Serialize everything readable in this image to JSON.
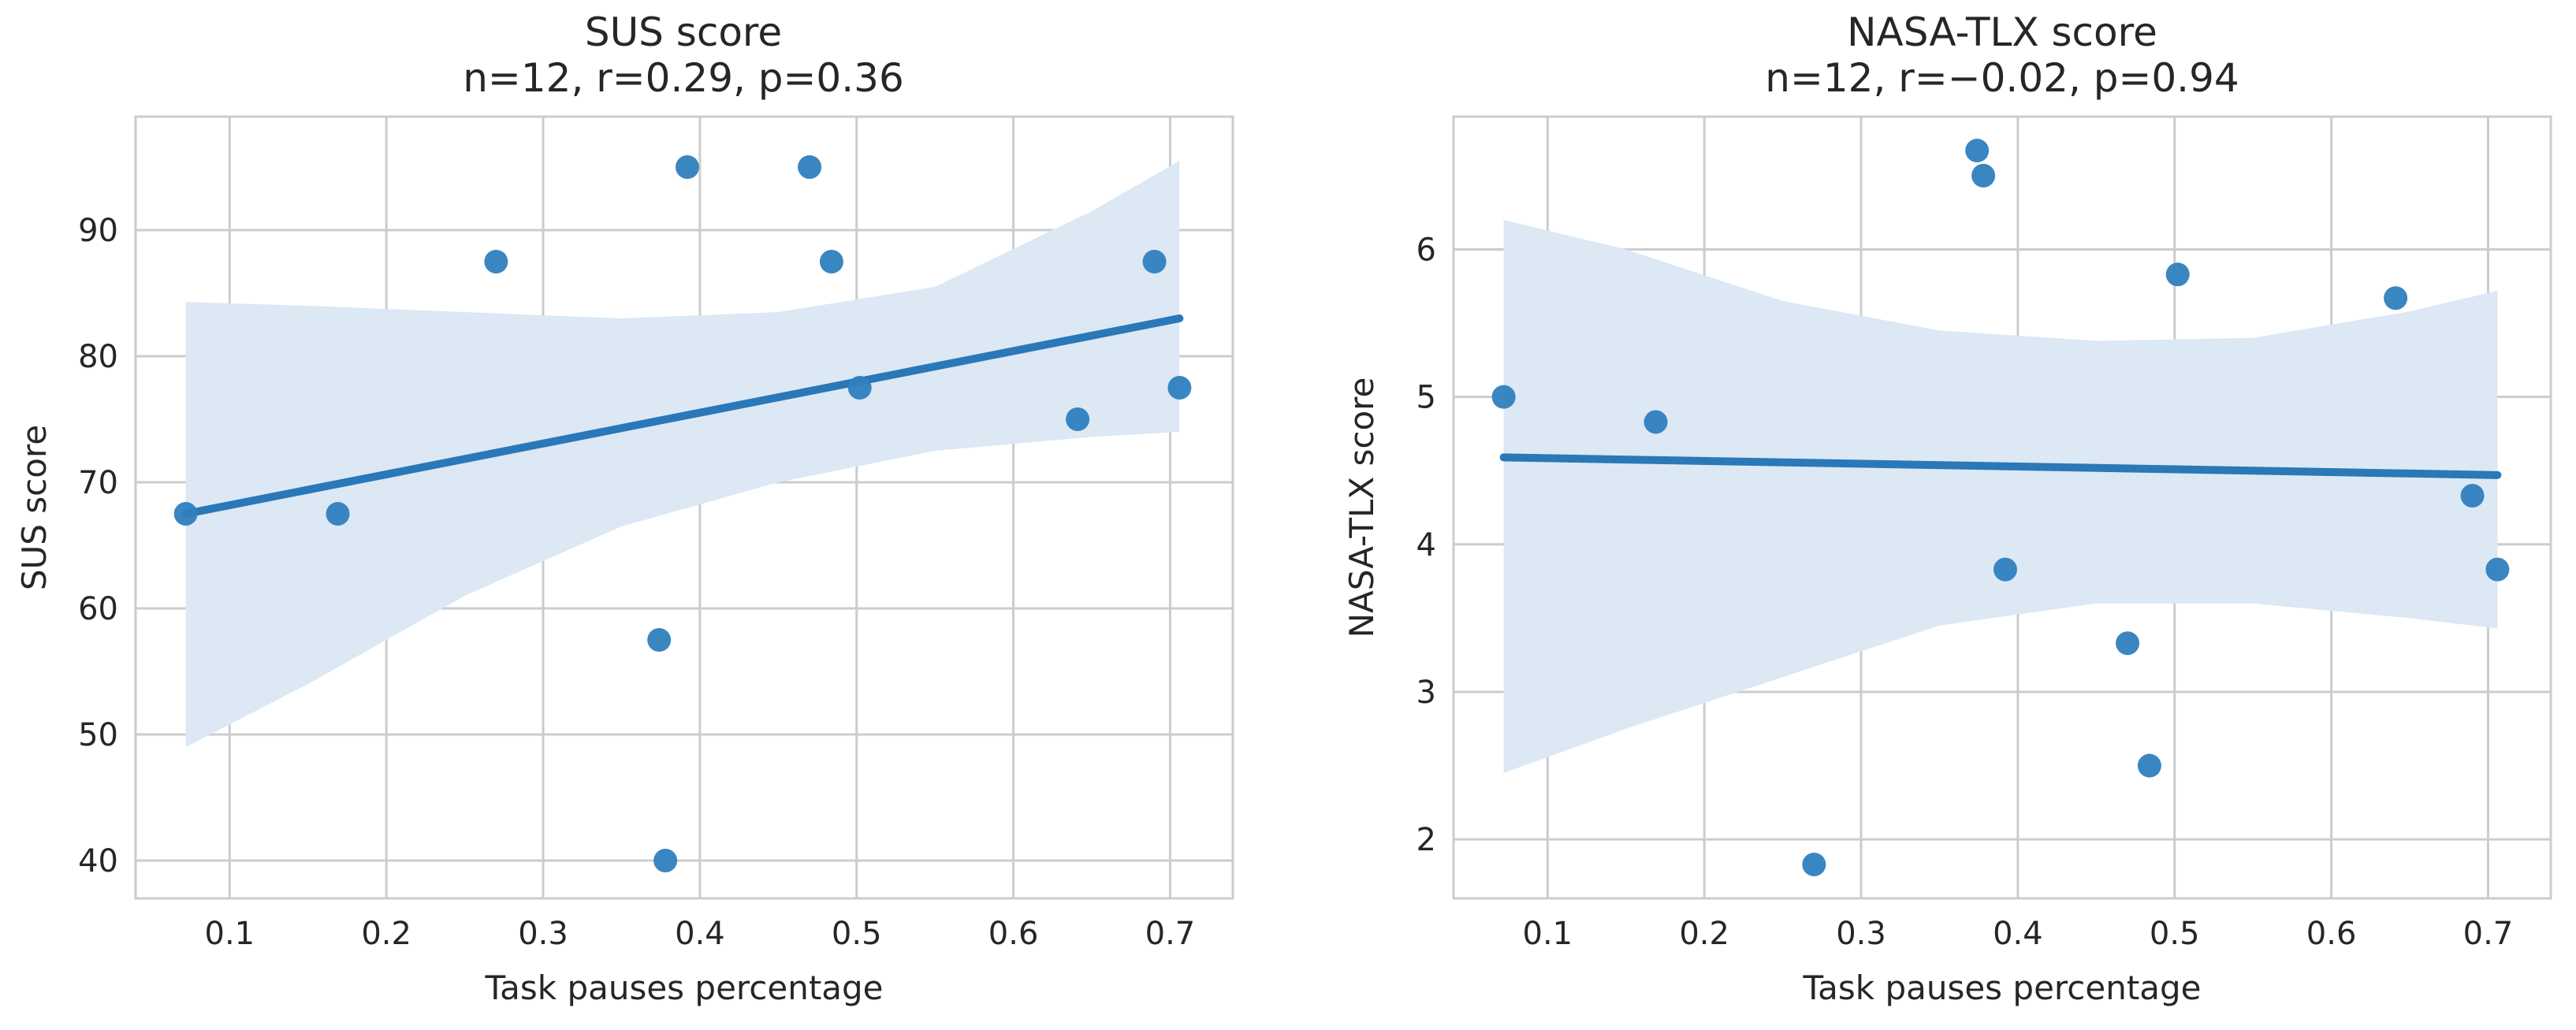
{
  "chart_data": [
    {
      "type": "scatter",
      "title": "SUS score",
      "subtitle": "n=12, r=0.29, p=0.36",
      "xlabel": "Task pauses percentage",
      "ylabel": "SUS score",
      "xlim": [
        0.04,
        0.74
      ],
      "ylim": [
        37,
        99
      ],
      "xticks": [
        0.1,
        0.2,
        0.3,
        0.4,
        0.5,
        0.6,
        0.7
      ],
      "xtick_labels": [
        "0.1",
        "0.2",
        "0.3",
        "0.4",
        "0.5",
        "0.6",
        "0.7"
      ],
      "yticks": [
        40,
        50,
        60,
        70,
        80,
        90
      ],
      "ytick_labels": [
        "40",
        "50",
        "60",
        "70",
        "80",
        "90"
      ],
      "grid": true,
      "points": [
        {
          "x": 0.072,
          "y": 67.5
        },
        {
          "x": 0.169,
          "y": 67.5
        },
        {
          "x": 0.27,
          "y": 87.5
        },
        {
          "x": 0.374,
          "y": 57.5
        },
        {
          "x": 0.378,
          "y": 40.0
        },
        {
          "x": 0.392,
          "y": 95.0
        },
        {
          "x": 0.47,
          "y": 95.0
        },
        {
          "x": 0.484,
          "y": 87.5
        },
        {
          "x": 0.502,
          "y": 77.5
        },
        {
          "x": 0.641,
          "y": 75.0
        },
        {
          "x": 0.69,
          "y": 87.5
        },
        {
          "x": 0.706,
          "y": 77.5
        }
      ],
      "regression_line": {
        "x": [
          0.072,
          0.706
        ],
        "y": [
          67.5,
          83.0
        ]
      },
      "confidence_band": {
        "x": [
          0.072,
          0.15,
          0.25,
          0.35,
          0.45,
          0.55,
          0.65,
          0.706
        ],
        "lower": [
          49.0,
          54.0,
          61.0,
          66.5,
          70.0,
          72.5,
          73.6,
          74.0
        ],
        "upper": [
          84.3,
          84.0,
          83.5,
          83.0,
          83.5,
          85.5,
          91.5,
          95.5
        ]
      },
      "colors": {
        "point": "#2f7fbe",
        "line": "#2a78b8",
        "band": "#dce8f4"
      }
    },
    {
      "type": "scatter",
      "title": "NASA-TLX score",
      "subtitle": "n=12, r=−0.02, p=0.94",
      "xlabel": "Task pauses percentage",
      "ylabel": "NASA-TLX score",
      "xlim": [
        0.04,
        0.74
      ],
      "ylim": [
        1.6,
        6.9
      ],
      "xticks": [
        0.1,
        0.2,
        0.3,
        0.4,
        0.5,
        0.6,
        0.7
      ],
      "xtick_labels": [
        "0.1",
        "0.2",
        "0.3",
        "0.4",
        "0.5",
        "0.6",
        "0.7"
      ],
      "yticks": [
        2,
        3,
        4,
        5,
        6
      ],
      "ytick_labels": [
        "2",
        "3",
        "4",
        "5",
        "6"
      ],
      "grid": true,
      "points": [
        {
          "x": 0.072,
          "y": 5.0
        },
        {
          "x": 0.169,
          "y": 4.83
        },
        {
          "x": 0.27,
          "y": 1.83
        },
        {
          "x": 0.374,
          "y": 6.67
        },
        {
          "x": 0.378,
          "y": 6.5
        },
        {
          "x": 0.392,
          "y": 3.83
        },
        {
          "x": 0.47,
          "y": 3.33
        },
        {
          "x": 0.484,
          "y": 2.5
        },
        {
          "x": 0.502,
          "y": 5.83
        },
        {
          "x": 0.641,
          "y": 5.67
        },
        {
          "x": 0.69,
          "y": 4.33
        },
        {
          "x": 0.706,
          "y": 3.83
        }
      ],
      "regression_line": {
        "x": [
          0.072,
          0.706
        ],
        "y": [
          4.59,
          4.47
        ]
      },
      "confidence_band": {
        "x": [
          0.072,
          0.15,
          0.25,
          0.35,
          0.45,
          0.55,
          0.65,
          0.706
        ],
        "lower": [
          2.45,
          2.75,
          3.1,
          3.45,
          3.6,
          3.6,
          3.5,
          3.43
        ],
        "upper": [
          6.2,
          6.0,
          5.65,
          5.45,
          5.38,
          5.4,
          5.58,
          5.72
        ]
      },
      "colors": {
        "point": "#2f7fbe",
        "line": "#2a78b8",
        "band": "#dce8f4"
      }
    }
  ]
}
